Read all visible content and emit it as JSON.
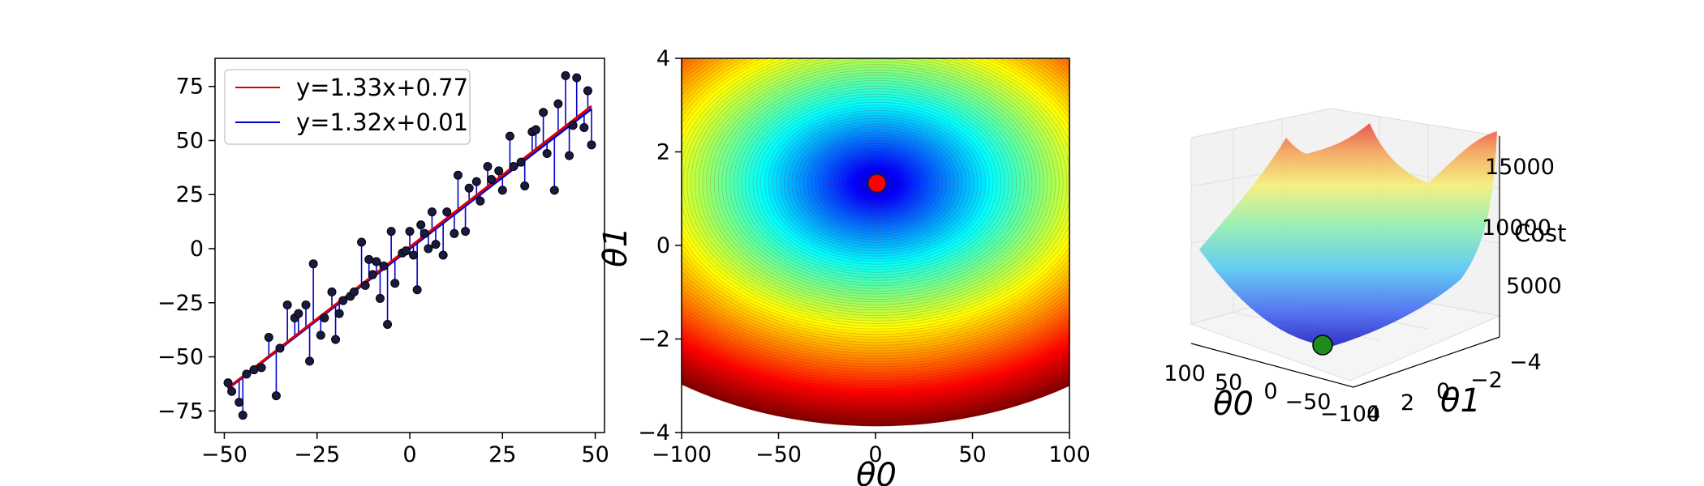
{
  "chart_data": [
    {
      "type": "scatter",
      "xlim": [
        -52.5,
        52.5
      ],
      "ylim": [
        -85,
        88
      ],
      "xticks": [
        -50,
        -25,
        0,
        25,
        50
      ],
      "yticks": [
        -75,
        -50,
        -25,
        0,
        25,
        50,
        75
      ],
      "xtick_labels": [
        "−50",
        "−25",
        "0",
        "25",
        "50"
      ],
      "ytick_labels": [
        "−75",
        "−50",
        "−25",
        "0",
        "25",
        "50",
        "75"
      ],
      "grid": false,
      "legend_position": "top-left",
      "colors": {
        "points": "#000000",
        "residuals": "#0000cc",
        "fit_red": "#dd0000",
        "fit_blue": "#0000cc"
      },
      "lines": [
        {
          "name": "y=1.33x+0.77",
          "slope": 1.33,
          "intercept": 0.77,
          "color": "#dd0000"
        },
        {
          "name": "y=1.32x+0.01",
          "slope": 1.32,
          "intercept": 0.01,
          "color": "#0000cc"
        }
      ],
      "x": [
        -49,
        -48,
        -46,
        -45,
        -44,
        -42,
        -40,
        -38,
        -36,
        -35,
        -33,
        -31,
        -30,
        -28,
        -27,
        -26,
        -24,
        -23,
        -21,
        -20,
        -19,
        -18,
        -16,
        -15,
        -13,
        -12,
        -11,
        -10,
        -9,
        -8,
        -7,
        -6,
        -5,
        -4,
        -2,
        -1,
        0,
        1,
        2,
        3,
        4,
        5,
        6,
        7,
        9,
        10,
        12,
        13,
        15,
        16,
        18,
        19,
        21,
        22,
        24,
        25,
        27,
        28,
        30,
        31,
        33,
        34,
        36,
        37,
        39,
        40,
        42,
        43,
        44,
        45,
        47,
        48,
        49
      ],
      "y": [
        -62,
        -66,
        -71,
        -77,
        -58,
        -56,
        -55,
        -41,
        -68,
        -46,
        -26,
        -32,
        -30,
        -26,
        -52,
        -7,
        -40,
        -32,
        -20,
        -42,
        -30,
        -24,
        -22,
        -20,
        3,
        -17,
        -5,
        -12,
        -6,
        -23,
        -8,
        -35,
        8,
        -16,
        -2,
        -1,
        8,
        -3,
        -19,
        11,
        7,
        0,
        17,
        2,
        -3,
        17,
        7,
        34,
        8,
        28,
        31,
        22,
        38,
        32,
        36,
        27,
        52,
        38,
        40,
        29,
        54,
        55,
        63,
        44,
        27,
        67,
        80,
        43,
        57,
        79,
        56,
        73,
        48
      ]
    },
    {
      "type": "heatmap",
      "subtype": "contour",
      "xlabel": "θ0",
      "ylabel": "θ1",
      "xlim": [
        -100,
        100
      ],
      "ylim": [
        -4,
        4
      ],
      "xticks": [
        -100,
        -50,
        0,
        50,
        100
      ],
      "yticks": [
        -4,
        -2,
        0,
        2,
        4
      ],
      "xtick_labels": [
        "−100",
        "−50",
        "0",
        "50",
        "100"
      ],
      "ytick_labels": [
        "−4",
        "−2",
        "0",
        "2",
        "4"
      ],
      "minimum": [
        0.77,
        1.33
      ],
      "marker_color": "#ff0000",
      "colormap": "jet"
    },
    {
      "type": "surface",
      "zlabel": "Cost",
      "xlabel": "θ0",
      "ylabel": "θ1",
      "xtick_labels": [
        "100",
        "50",
        "0",
        "−50",
        "−100"
      ],
      "ytick_labels": [
        "−4",
        "−2",
        "0",
        "2",
        "4"
      ],
      "ztick_labels": [
        "5000",
        "10000",
        "15000"
      ],
      "marker_color": "#1e8c1e",
      "colormap": "jet"
    }
  ]
}
